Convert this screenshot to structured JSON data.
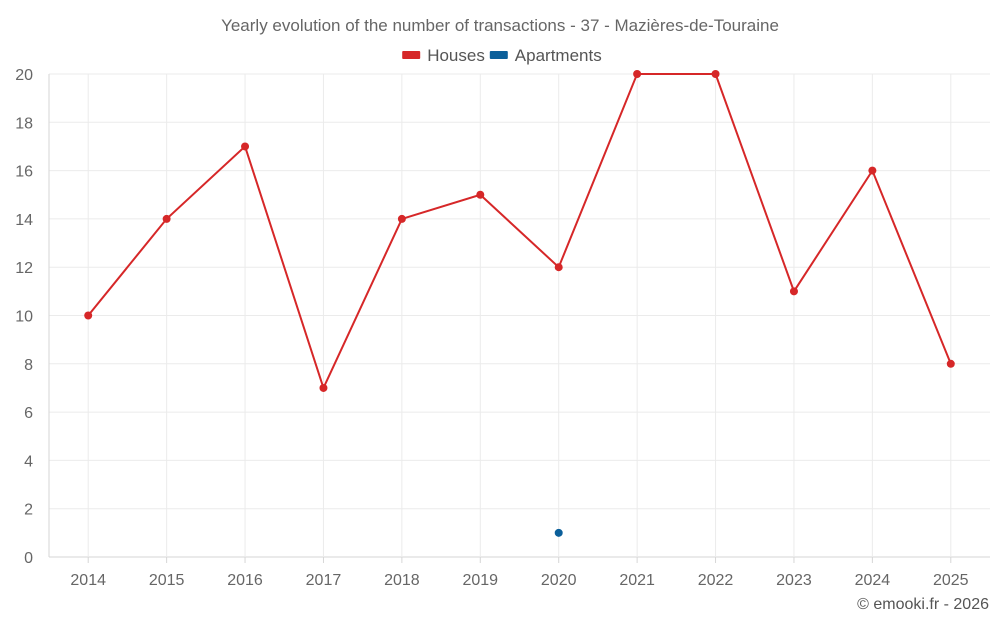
{
  "chart_data": {
    "type": "line",
    "title": "Yearly evolution of the number of transactions - 37 - Mazières-de-Touraine",
    "categories": [
      "2014",
      "2015",
      "2016",
      "2017",
      "2018",
      "2019",
      "2020",
      "2021",
      "2022",
      "2023",
      "2024",
      "2025"
    ],
    "series": [
      {
        "name": "Houses",
        "color": "#d62728",
        "values": [
          10,
          14,
          17,
          7,
          14,
          15,
          12,
          20,
          20,
          11,
          16,
          8
        ]
      },
      {
        "name": "Apartments",
        "color": "#0b5f9a",
        "values": [
          null,
          null,
          null,
          null,
          null,
          null,
          1,
          null,
          null,
          null,
          null,
          null
        ]
      }
    ],
    "yticks": [
      0,
      2,
      4,
      6,
      8,
      10,
      12,
      14,
      16,
      18,
      20
    ],
    "ylim": [
      0,
      20
    ],
    "xlabel": "",
    "ylabel": "",
    "grid": true,
    "legend": "top-center"
  },
  "credit": "© emooki.fr - 2026"
}
